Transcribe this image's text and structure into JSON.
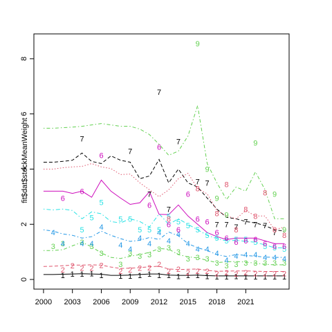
{
  "chart_data": {
    "type": "line",
    "title": "",
    "xlabel": "",
    "ylabel": "fit$dat$stockMeanWeight",
    "xlim": [
      1999.0,
      2025.5
    ],
    "ylim": [
      -0.35,
      8.9
    ],
    "x_ticks": [
      2000,
      2003,
      2006,
      2009,
      2012,
      2015,
      2018,
      2021
    ],
    "x_tick_labels": [
      "2000",
      "2003",
      "2006",
      "2009",
      "2012",
      "2015",
      "2018",
      "2021"
    ],
    "y_ticks": [
      0,
      2,
      4,
      6,
      8
    ],
    "y_tick_labels": [
      "0",
      "2",
      "4",
      "6",
      "8"
    ],
    "grid": false,
    "legend": "none",
    "x": [
      2000,
      2001,
      2002,
      2003,
      2004,
      2005,
      2006,
      2007,
      2008,
      2009,
      2010,
      2011,
      2012,
      2013,
      2014,
      2015,
      2016,
      2017,
      2018,
      2019,
      2020,
      2021,
      2022,
      2023,
      2024,
      2025
    ],
    "series": [
      {
        "label": "1",
        "color": "#000000",
        "dash": "solid",
        "fit": [
          0.18,
          0.18,
          0.19,
          0.2,
          0.21,
          0.2,
          0.19,
          0.15,
          0.15,
          0.16,
          0.18,
          0.2,
          0.2,
          0.16,
          0.15,
          0.15,
          0.16,
          0.14,
          0.13,
          0.13,
          0.13,
          0.13,
          0.13,
          0.13,
          0.13,
          0.13
        ],
        "obs": [
          null,
          null,
          0.15,
          0.2,
          0.2,
          0.22,
          0.15,
          null,
          0.13,
          0.13,
          0.15,
          0.2,
          0.15,
          0.15,
          0.12,
          0.15,
          0.15,
          0.12,
          0.1,
          0.1,
          0.12,
          0.1,
          0.1,
          0.1,
          0.1,
          0.1
        ]
      },
      {
        "label": "2",
        "color": "#df536b",
        "dash": "dashed",
        "fit": [
          0.47,
          0.48,
          0.5,
          0.52,
          0.52,
          0.53,
          0.52,
          0.45,
          0.4,
          0.41,
          0.43,
          0.46,
          0.48,
          0.38,
          0.36,
          0.37,
          0.38,
          0.33,
          0.3,
          0.3,
          0.31,
          0.31,
          0.3,
          0.29,
          0.29,
          0.29
        ],
        "obs": [
          null,
          null,
          0.35,
          0.5,
          0.42,
          0.42,
          0.52,
          null,
          0.3,
          0.35,
          0.42,
          0.43,
          0.55,
          0.3,
          0.38,
          0.25,
          0.3,
          0.3,
          0.22,
          0.25,
          0.2,
          0.25,
          0.22,
          0.22,
          0.22,
          0.22
        ]
      },
      {
        "label": "3",
        "color": "#61d04f",
        "dash": "dashdot",
        "fit": [
          1.05,
          1.05,
          1.08,
          1.22,
          1.35,
          1.18,
          0.96,
          0.8,
          0.76,
          0.84,
          0.9,
          0.98,
          1.12,
          1.1,
          0.9,
          0.82,
          0.78,
          0.69,
          0.61,
          0.64,
          0.65,
          0.63,
          0.59,
          0.55,
          0.53,
          0.53
        ],
        "obs": [
          null,
          1.2,
          1.3,
          null,
          1.35,
          1.2,
          0.95,
          null,
          0.55,
          0.95,
          0.85,
          0.9,
          1.1,
          1.15,
          1.0,
          0.75,
          0.8,
          0.75,
          0.6,
          0.5,
          0.55,
          0.6,
          0.6,
          0.6,
          0.6,
          0.6
        ]
      },
      {
        "label": "4",
        "color": "#2297e6",
        "dash": "dashdot",
        "fit": [
          1.8,
          1.75,
          1.65,
          1.6,
          1.5,
          1.55,
          1.75,
          1.6,
          1.48,
          1.38,
          1.42,
          1.52,
          1.45,
          1.72,
          1.58,
          1.3,
          1.15,
          1.05,
          0.9,
          0.83,
          0.9,
          0.87,
          0.84,
          0.81,
          0.8,
          0.8
        ],
        "obs": [
          null,
          1.7,
          1.3,
          null,
          1.3,
          1.3,
          1.9,
          null,
          1.25,
          1.1,
          1.5,
          1.3,
          1.7,
          1.4,
          1.65,
          1.3,
          1.1,
          1.1,
          0.95,
          0.7,
          0.85,
          0.9,
          0.9,
          0.8,
          0.8,
          0.75
        ]
      },
      {
        "label": "5",
        "color": "#28e2e5",
        "dash": "dotdash",
        "fit": [
          2.55,
          2.52,
          2.55,
          2.5,
          2.2,
          2.45,
          2.38,
          2.1,
          2.05,
          2.2,
          2.1,
          1.9,
          2.38,
          2.0,
          2.2,
          2.0,
          1.8,
          1.6,
          1.48,
          1.4,
          1.42,
          1.38,
          1.35,
          1.25,
          1.15,
          1.15
        ],
        "obs": [
          null,
          null,
          null,
          null,
          1.8,
          2.25,
          2.8,
          null,
          2.2,
          2.2,
          1.8,
          1.8,
          1.8,
          2.3,
          2.1,
          1.95,
          1.8,
          1.6,
          1.5,
          1.4,
          1.45,
          1.45,
          1.35,
          1.2,
          1.15,
          1.1
        ]
      },
      {
        "label": "6",
        "color": "#cd0bbc",
        "dash": "solid",
        "fit": [
          3.2,
          3.2,
          3.2,
          3.12,
          3.2,
          2.98,
          3.6,
          3.2,
          2.95,
          2.72,
          2.78,
          3.18,
          2.36,
          2.35,
          2.7,
          2.3,
          2.0,
          1.7,
          1.55,
          1.45,
          1.5,
          1.5,
          1.5,
          1.4,
          1.3,
          1.3
        ],
        "obs": [
          null,
          null,
          2.95,
          null,
          3.2,
          null,
          4.5,
          null,
          null,
          null,
          null,
          2.7,
          4.8,
          2.0,
          1.8,
          3.1,
          2.2,
          2.1,
          1.7,
          1.5,
          1.35,
          1.4,
          1.45,
          1.3,
          1.2,
          1.2
        ]
      },
      {
        "label": "7",
        "color": "#000000",
        "dash": "dashed",
        "fit": [
          4.25,
          4.25,
          4.28,
          4.32,
          4.58,
          4.28,
          4.2,
          4.48,
          4.32,
          4.25,
          3.65,
          3.75,
          4.35,
          3.5,
          4.0,
          3.5,
          3.35,
          2.95,
          2.55,
          2.25,
          2.2,
          2.1,
          2.05,
          1.95,
          1.8,
          1.75
        ],
        "obs": [
          null,
          null,
          null,
          null,
          5.1,
          null,
          null,
          null,
          null,
          4.65,
          null,
          3.1,
          6.8,
          2.55,
          5.0,
          null,
          3.55,
          3.5,
          2.0,
          2.0,
          1.9,
          2.1,
          2.0,
          1.95,
          1.7,
          null
        ]
      },
      {
        "label": "8",
        "color": "#f5c710",
        "dash": "dotted",
        "fit": [
          4.0,
          4.0,
          4.05,
          4.08,
          4.1,
          4.2,
          4.08,
          4.02,
          3.8,
          3.82,
          3.5,
          3.25,
          3.0,
          3.25,
          3.65,
          3.85,
          3.3,
          3.1,
          2.5,
          2.3,
          2.2,
          2.5,
          2.3,
          2.3,
          1.8,
          1.9
        ],
        "obs": [
          null,
          null,
          null,
          null,
          null,
          null,
          null,
          null,
          null,
          null,
          null,
          null,
          null,
          2.2,
          null,
          null,
          3.3,
          null,
          2.4,
          3.45,
          1.8,
          2.55,
          2.3,
          3.15,
          1.8,
          1.6
        ],
        "plot_color": "#df536b"
      },
      {
        "label": "9",
        "color": "#61d04f",
        "dash": "dashdot",
        "fit": [
          5.48,
          5.48,
          5.5,
          5.52,
          5.55,
          5.6,
          5.65,
          5.6,
          5.55,
          5.55,
          5.45,
          5.25,
          4.9,
          4.5,
          4.65,
          5.2,
          6.3,
          4.2,
          3.5,
          2.9,
          3.35,
          3.2,
          3.9,
          3.25,
          2.2,
          2.2
        ],
        "obs": [
          null,
          null,
          null,
          null,
          null,
          null,
          null,
          null,
          null,
          null,
          null,
          null,
          null,
          null,
          null,
          null,
          8.55,
          4.0,
          2.95,
          2.35,
          null,
          null,
          4.95,
          null,
          3.1,
          1.8
        ]
      }
    ]
  }
}
